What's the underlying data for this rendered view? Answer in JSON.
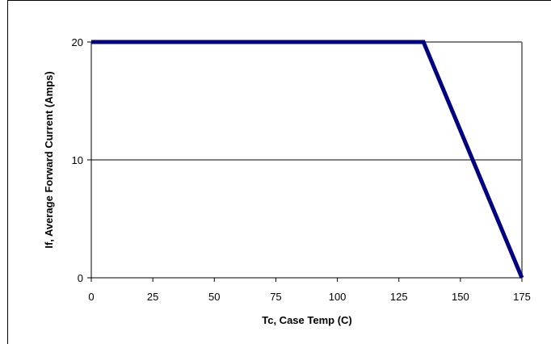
{
  "chart_data": {
    "type": "line",
    "title": "",
    "xlabel": "Tc, Case Temp (C)",
    "ylabel": "If, Average Forward Current (Amps)",
    "xlim": [
      0,
      175
    ],
    "ylim": [
      0,
      20
    ],
    "x_ticks": [
      0,
      25,
      50,
      75,
      100,
      125,
      150,
      175
    ],
    "y_ticks": [
      0,
      10,
      20
    ],
    "grid": {
      "y_major": true,
      "x_major": false
    },
    "legend": "none",
    "series": [
      {
        "x": [
          0,
          135,
          175
        ],
        "y": [
          20,
          20,
          0
        ],
        "color": "#000080"
      }
    ],
    "colors": {
      "series": "#000080",
      "plot_border": "#808080",
      "gridline": "#000000"
    }
  }
}
